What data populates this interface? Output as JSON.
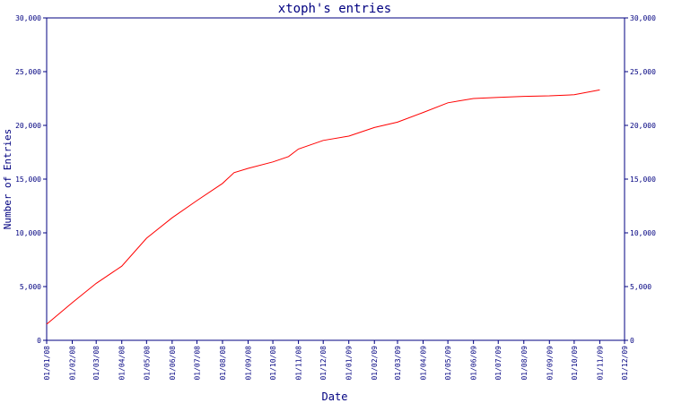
{
  "chart_data": {
    "type": "line",
    "title": "xtoph's entries",
    "xlabel": "Date",
    "ylabel": "Number of Entries",
    "ylim": [
      0,
      30000
    ],
    "grid": false,
    "legend": "none",
    "colors": {
      "axis": "#000080",
      "line": "#ff0000",
      "text": "#000080"
    },
    "y_ticks": [
      {
        "value": 0,
        "label": "0"
      },
      {
        "value": 5000,
        "label": "5,000"
      },
      {
        "value": 10000,
        "label": "10,000"
      },
      {
        "value": 15000,
        "label": "15,000"
      },
      {
        "value": 20000,
        "label": "20,000"
      },
      {
        "value": 25000,
        "label": "25,000"
      },
      {
        "value": 30000,
        "label": "30,000"
      }
    ],
    "x_ticks": [
      "01/01/08",
      "01/02/08",
      "01/03/08",
      "01/04/08",
      "01/05/08",
      "01/06/08",
      "01/07/08",
      "01/08/08",
      "01/09/08",
      "01/10/08",
      "01/11/08",
      "01/12/08",
      "01/01/09",
      "01/02/09",
      "01/03/09",
      "01/04/09",
      "01/05/09",
      "01/06/09",
      "01/07/09",
      "01/08/09",
      "01/09/09",
      "01/10/09",
      "01/11/09",
      "01/12/09"
    ],
    "series": [
      {
        "values": [
          {
            "x": "01/01/08",
            "y": 1500
          },
          {
            "x": "01/02/08",
            "y": 3500
          },
          {
            "x": "01/03/08",
            "y": 5300
          },
          {
            "x": "01/04/08",
            "y": 6900
          },
          {
            "x": "01/05/08",
            "y": 9500
          },
          {
            "x": "01/06/08",
            "y": 11400
          },
          {
            "x": "01/07/08",
            "y": 13000
          },
          {
            "x": "01/08/08",
            "y": 14600
          },
          {
            "x": "15/08/08",
            "y": 15600
          },
          {
            "x": "01/09/08",
            "y": 16000
          },
          {
            "x": "01/10/08",
            "y": 16600
          },
          {
            "x": "20/10/08",
            "y": 17100
          },
          {
            "x": "01/11/08",
            "y": 17800
          },
          {
            "x": "01/12/08",
            "y": 18600
          },
          {
            "x": "01/01/09",
            "y": 19000
          },
          {
            "x": "01/02/09",
            "y": 19800
          },
          {
            "x": "01/03/09",
            "y": 20300
          },
          {
            "x": "01/04/09",
            "y": 21200
          },
          {
            "x": "01/05/09",
            "y": 22100
          },
          {
            "x": "01/06/09",
            "y": 22500
          },
          {
            "x": "01/07/09",
            "y": 22600
          },
          {
            "x": "01/08/09",
            "y": 22700
          },
          {
            "x": "01/09/09",
            "y": 22750
          },
          {
            "x": "01/10/09",
            "y": 22850
          },
          {
            "x": "01/11/09",
            "y": 23300
          }
        ]
      }
    ]
  }
}
